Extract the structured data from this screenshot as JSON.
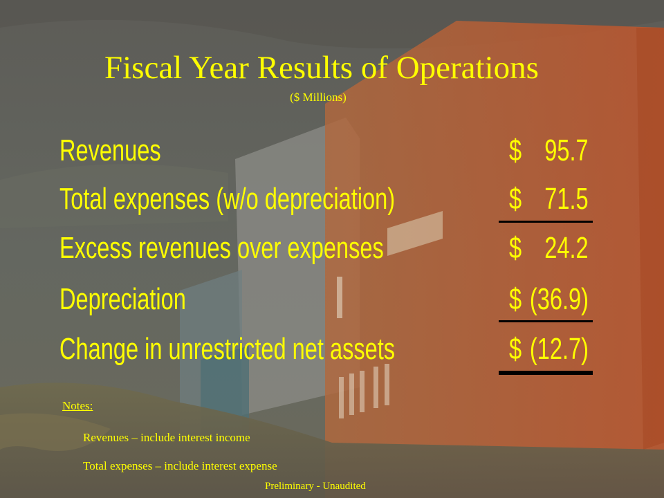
{
  "slide": {
    "title": "Fiscal Year Results of Operations",
    "subtitle": "($ Millions)",
    "rows": [
      {
        "label": "Revenues",
        "currency": "$",
        "amount": "95.7"
      },
      {
        "label": "Total expenses (w/o depreciation)",
        "currency": "$",
        "amount": "71.5"
      },
      {
        "label": "Excess revenues over expenses",
        "currency": "$",
        "amount": "24.2"
      },
      {
        "label": "Depreciation",
        "currency": "$",
        "amount": "(36.9)"
      },
      {
        "label": "Change in unrestricted net assets",
        "currency": "$",
        "amount": "(12.7)"
      }
    ],
    "notes": {
      "heading": "Notes:",
      "items": [
        "Revenues – include interest income",
        "Total expenses – include interest expense"
      ]
    },
    "footer": "Preliminary - Unaudited"
  },
  "colors": {
    "text": "#ffff00",
    "background": "#55524b",
    "building": "#b8633a",
    "rule": "#000000"
  }
}
